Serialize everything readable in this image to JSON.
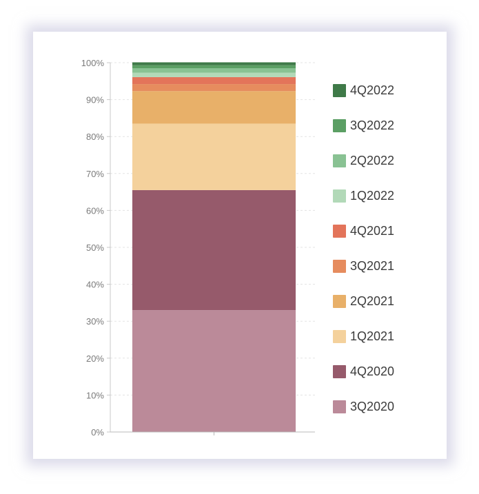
{
  "chart_data": {
    "type": "bar",
    "stacked": true,
    "normalized": true,
    "categories": [
      ""
    ],
    "ylim": [
      0,
      100
    ],
    "y_ticks": [
      "0%",
      "10%",
      "20%",
      "30%",
      "40%",
      "50%",
      "60%",
      "70%",
      "80%",
      "90%",
      "100%"
    ],
    "grid": true,
    "legend_position": "right",
    "series": [
      {
        "name": "3Q2020",
        "values": [
          33.0
        ],
        "color": "#bb8a99"
      },
      {
        "name": "4Q2020",
        "values": [
          32.5
        ],
        "color": "#965a6b"
      },
      {
        "name": "1Q2021",
        "values": [
          18.0
        ],
        "color": "#f4d19c"
      },
      {
        "name": "2Q2021",
        "values": [
          8.8
        ],
        "color": "#e8b069"
      },
      {
        "name": "3Q2021",
        "values": [
          1.9
        ],
        "color": "#e68c5e"
      },
      {
        "name": "4Q2021",
        "values": [
          1.9
        ],
        "color": "#e3745a"
      },
      {
        "name": "1Q2022",
        "values": [
          1.2
        ],
        "color": "#b2d9b8"
      },
      {
        "name": "2Q2022",
        "values": [
          1.2
        ],
        "color": "#89c293"
      },
      {
        "name": "3Q2022",
        "values": [
          0.8
        ],
        "color": "#5b9f64"
      },
      {
        "name": "4Q2022",
        "values": [
          0.8
        ],
        "color": "#3f7a48"
      }
    ]
  }
}
